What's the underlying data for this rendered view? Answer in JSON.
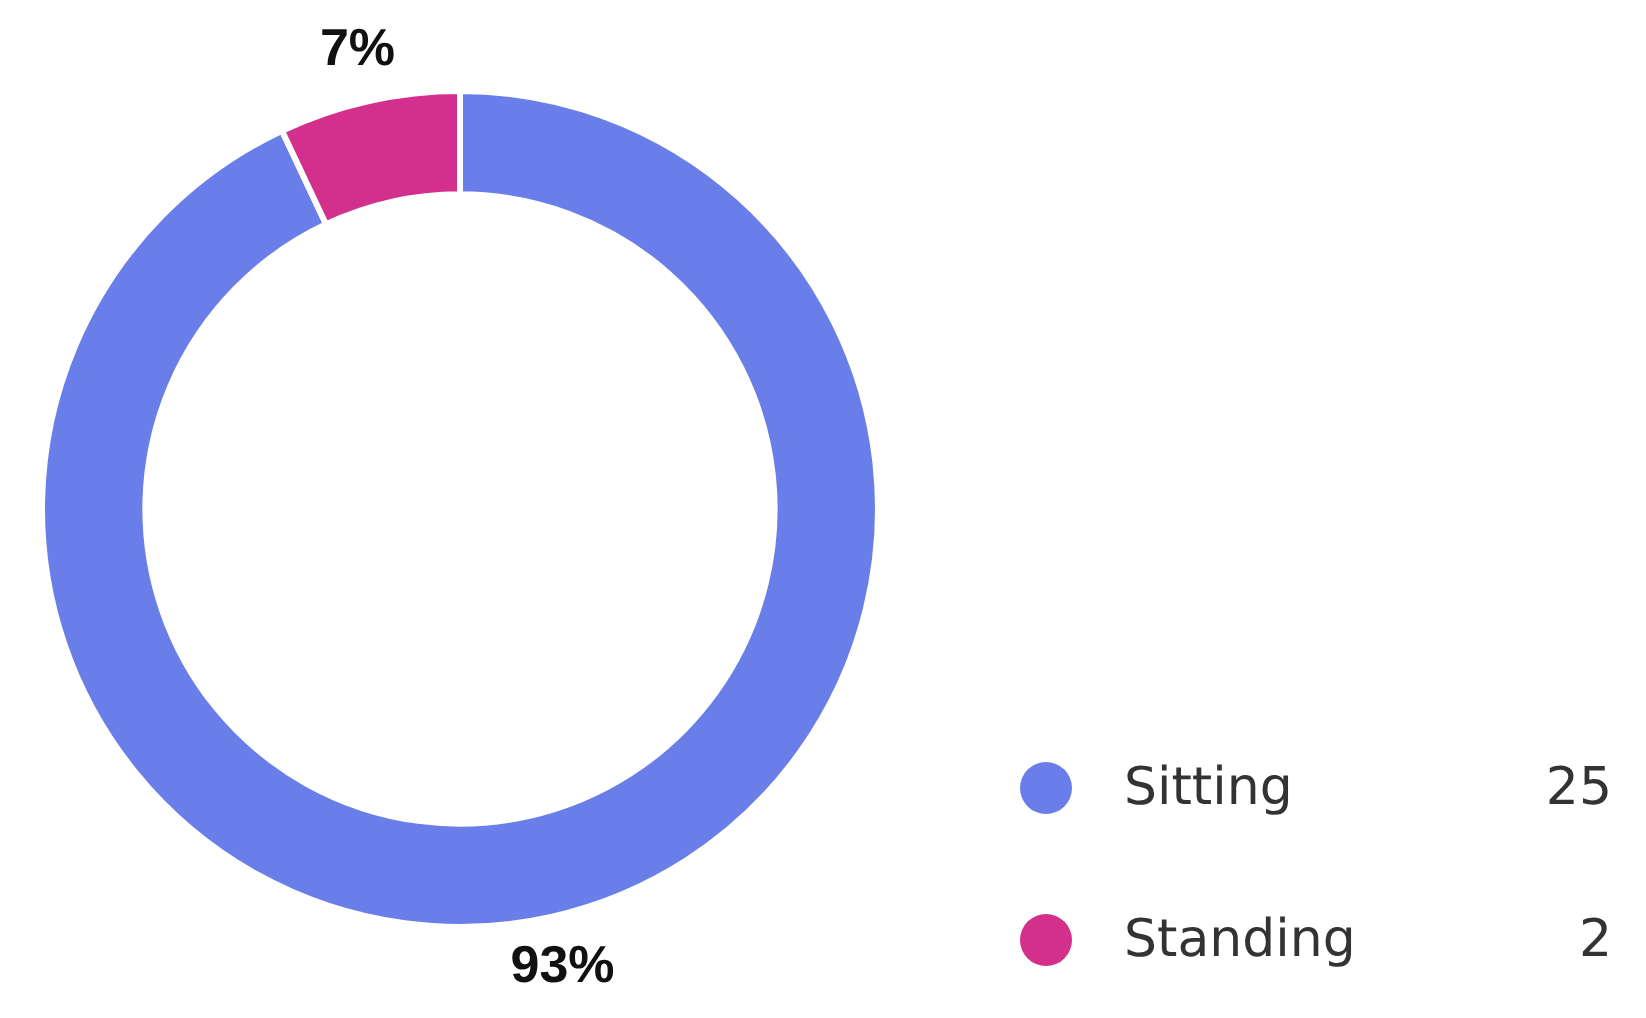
{
  "chart_data": {
    "type": "donut",
    "categories": [
      "Sitting",
      "Standing"
    ],
    "values": [
      93,
      7
    ],
    "colors": [
      "#6a7eea",
      "#d3308d"
    ],
    "value_labels": [
      "93%",
      "7%"
    ],
    "annotations": [
      {
        "text": "25",
        "x": "Sitting"
      },
      {
        "text": "2",
        "x": "Standing"
      }
    ],
    "legend": "bottom right"
  }
}
